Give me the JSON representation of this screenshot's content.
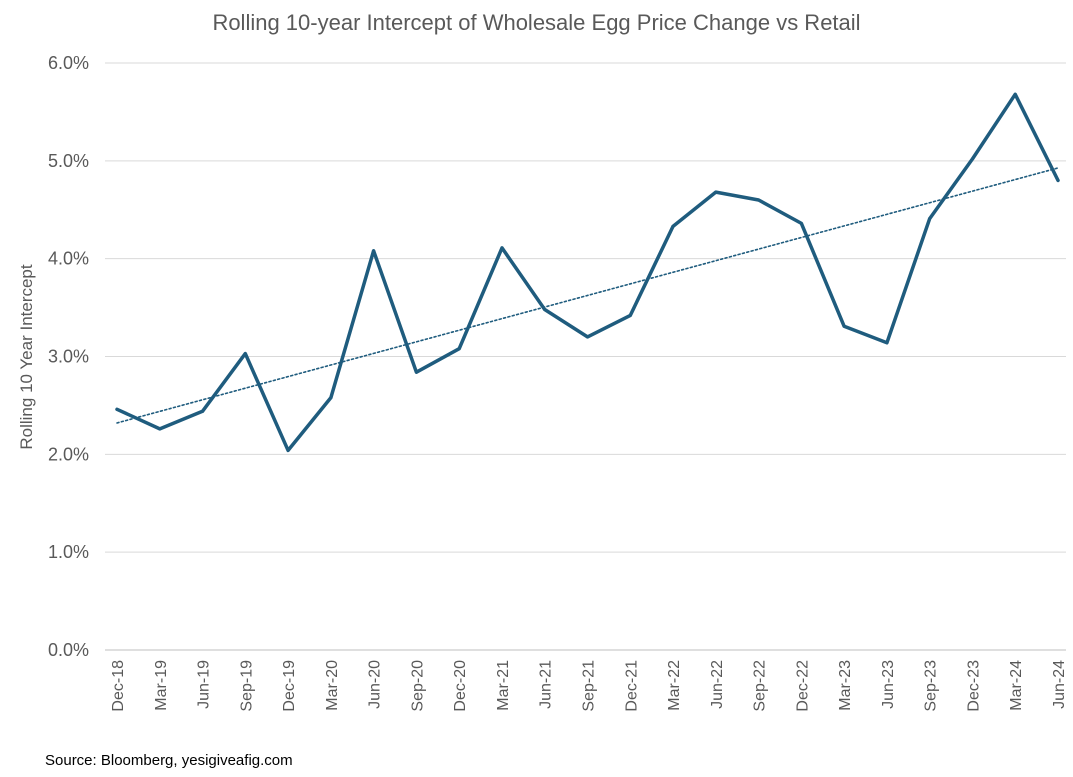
{
  "chart_data": {
    "type": "line",
    "title": "Rolling 10-year Intercept of Wholesale Egg Price Change vs Retail",
    "xlabel": "",
    "ylabel": "Rolling 10 Year Intercept",
    "ylim": [
      0,
      0.06
    ],
    "yticks": [
      "0.0%",
      "1.0%",
      "2.0%",
      "3.0%",
      "4.0%",
      "5.0%",
      "6.0%"
    ],
    "grid": true,
    "legend": "none",
    "categories": [
      "Dec-18",
      "Mar-19",
      "Jun-19",
      "Sep-19",
      "Dec-19",
      "Mar-20",
      "Jun-20",
      "Sep-20",
      "Dec-20",
      "Mar-21",
      "Jun-21",
      "Sep-21",
      "Dec-21",
      "Mar-22",
      "Jun-22",
      "Sep-22",
      "Dec-22",
      "Mar-23",
      "Jun-23",
      "Sep-23",
      "Dec-23",
      "Mar-24",
      "Jun-24"
    ],
    "series": [
      {
        "values": [
          0.0246,
          0.0226,
          0.0244,
          0.0303,
          0.0204,
          0.0258,
          0.0408,
          0.0284,
          0.0308,
          0.0411,
          0.0348,
          0.032,
          0.0342,
          0.0433,
          0.0468,
          0.046,
          0.0436,
          0.0331,
          0.0314,
          0.0441,
          0.0502,
          0.0568,
          0.048
        ],
        "color": "#1F5C7E"
      }
    ],
    "trendline": {
      "type": "linear",
      "style": "dotted",
      "color": "#1F5C7E"
    }
  },
  "source": "Source: Bloomberg, yesigiveafig.com"
}
